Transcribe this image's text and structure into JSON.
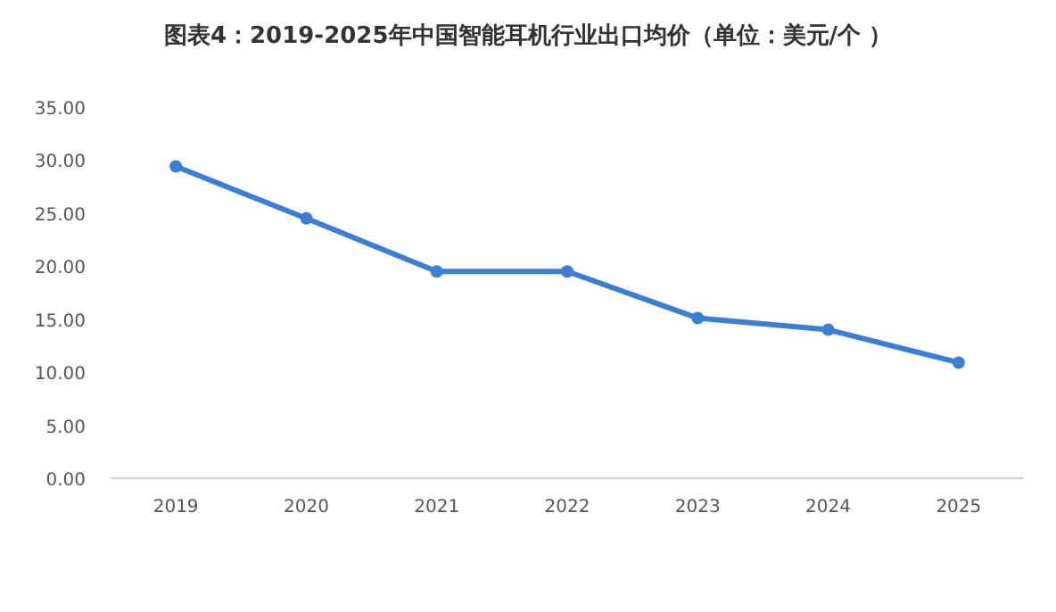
{
  "chart_data": {
    "type": "line",
    "title": "图表4：2019-2025年中国智能耳机行业出口均价（单位：美元/个 ）",
    "categories": [
      "2019",
      "2020",
      "2021",
      "2022",
      "2023",
      "2024",
      "2025"
    ],
    "series": [
      {
        "color": "#3a7fd5",
        "values": [
          29.4,
          24.5,
          19.5,
          19.5,
          15.1,
          14.0,
          10.9
        ]
      }
    ],
    "ylim": [
      0,
      35
    ],
    "yticks": [
      {
        "value": 0,
        "label": "0.00"
      },
      {
        "value": 5,
        "label": "5.00"
      },
      {
        "value": 10,
        "label": "10.00"
      },
      {
        "value": 15,
        "label": "15.00"
      },
      {
        "value": 20,
        "label": "20.00"
      },
      {
        "value": 25,
        "label": "25.00"
      },
      {
        "value": 30,
        "label": "30.00"
      },
      {
        "value": 35,
        "label": "35.00"
      }
    ],
    "grid": false,
    "marker": "circle",
    "line_style": "solid"
  }
}
